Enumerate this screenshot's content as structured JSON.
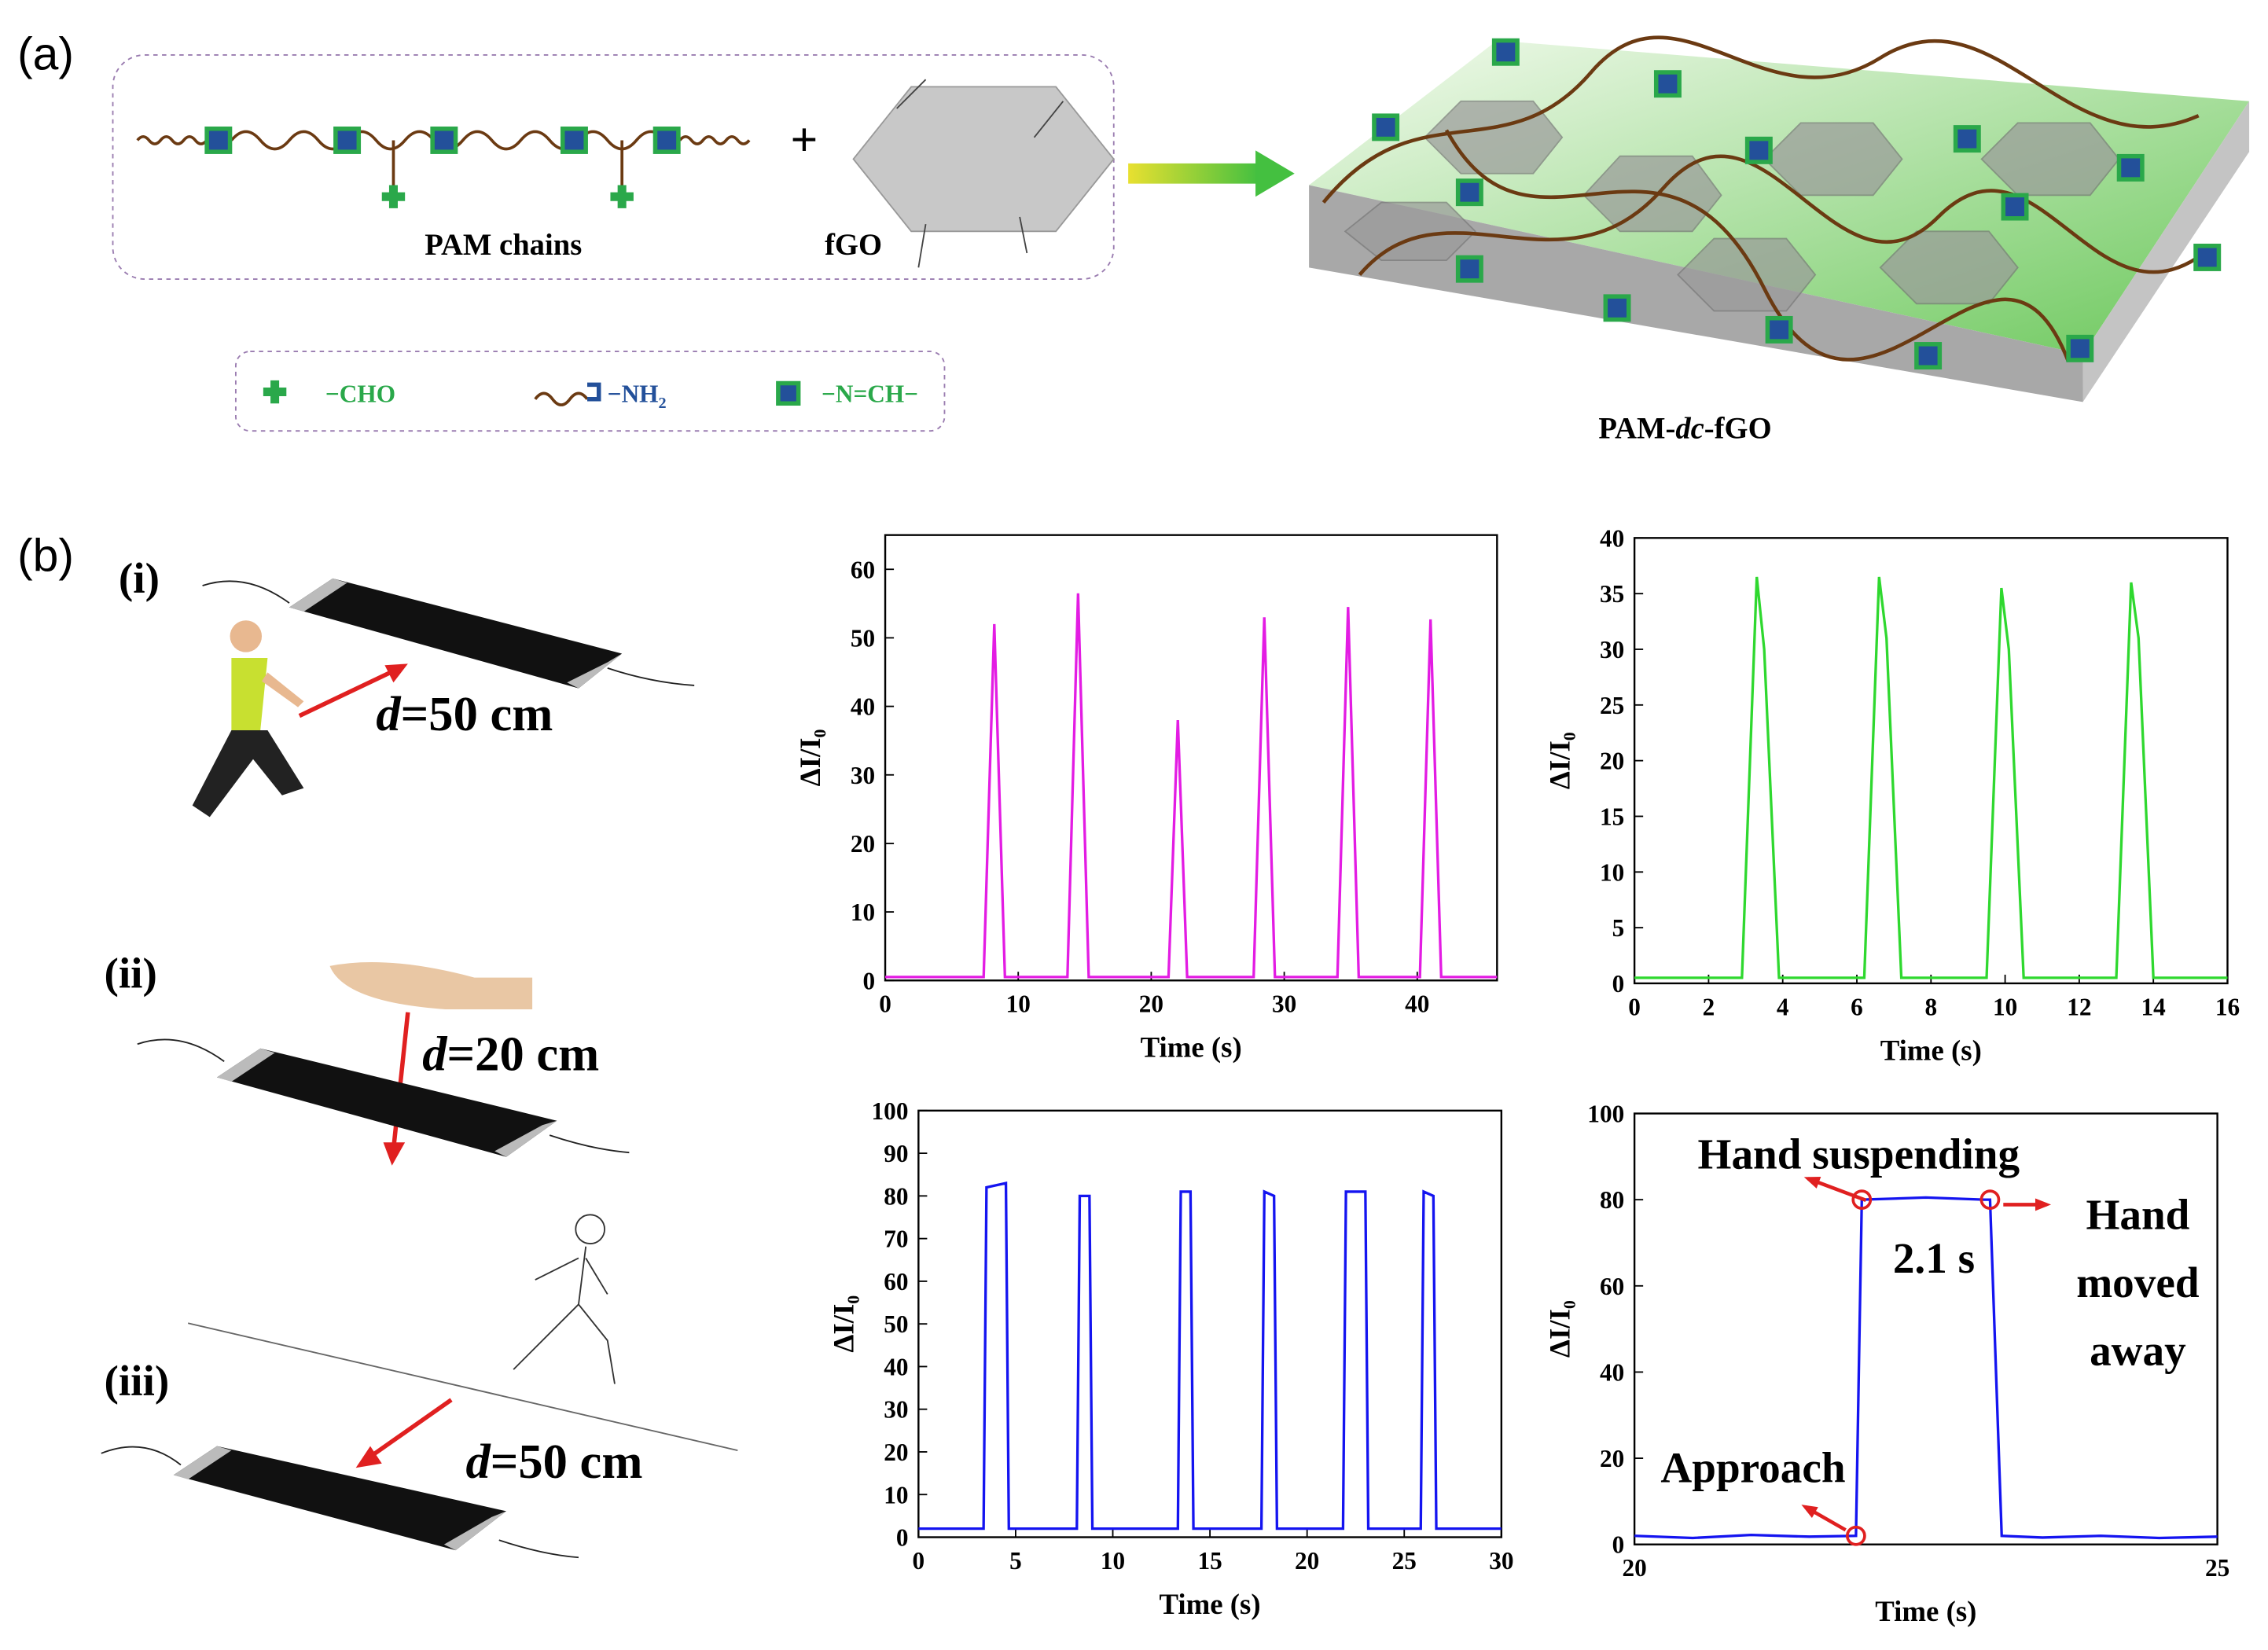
{
  "panel_a": {
    "label": "(a)",
    "chain_label": "PAM chains",
    "plus": "+",
    "sheet_label": "fGO",
    "legend": {
      "cho": "−CHO",
      "nh2": "−NH",
      "nh2_sub": "2",
      "imine": "−N=CH−"
    },
    "product_label": [
      "PAM-",
      "dc",
      "-fGO"
    ]
  },
  "panel_b": {
    "label": "(b)",
    "scenes": [
      {
        "label": "(i)",
        "distance": {
          "var": "d",
          "rest": "=50 cm"
        }
      },
      {
        "label": "(ii)",
        "distance": {
          "var": "d",
          "rest": "=20 cm"
        }
      },
      {
        "label": "(iii)",
        "distance": {
          "var": "d",
          "rest": "=50 cm"
        }
      }
    ]
  },
  "chart_data": [
    {
      "type": "line",
      "xlabel": "Time (s)",
      "ylabel": "ΔI/I₀",
      "xlim": [
        0,
        46
      ],
      "ylim": [
        0,
        65
      ],
      "xticks": [
        0,
        10,
        20,
        30,
        40
      ],
      "yticks": [
        0,
        10,
        20,
        30,
        40,
        50,
        60
      ],
      "x": [
        0,
        7.4,
        8.2,
        9.0,
        13.7,
        14.5,
        15.3,
        21.3,
        22,
        22.7,
        27.7,
        28.5,
        29.3,
        34,
        34.8,
        35.6,
        40.2,
        41,
        41.8,
        46
      ],
      "series": [
        {
          "color": "#e31ce3",
          "values": [
            0.5,
            0.5,
            52,
            0.5,
            0.5,
            56.5,
            0.5,
            0.5,
            38,
            0.5,
            0.5,
            53,
            0.5,
            0.5,
            54.5,
            0.5,
            0.5,
            52.7,
            0.5,
            0.5
          ]
        }
      ]
    },
    {
      "type": "line",
      "xlabel": "Time (s)",
      "ylabel": "ΔI/I₀",
      "xlim": [
        0,
        16
      ],
      "ylim": [
        0,
        40
      ],
      "xticks": [
        0,
        2,
        4,
        6,
        8,
        10,
        12,
        14,
        16
      ],
      "yticks": [
        0,
        5,
        10,
        15,
        20,
        25,
        30,
        35,
        40
      ],
      "x": [
        0,
        2.9,
        3.3,
        3.5,
        3.9,
        6.2,
        6.6,
        6.8,
        7.2,
        9.5,
        9.9,
        10.1,
        10.5,
        13.0,
        13.4,
        13.6,
        14.0,
        16
      ],
      "series": [
        {
          "color": "#2fd82f",
          "values": [
            0.5,
            0.5,
            36.5,
            30,
            0.5,
            0.5,
            36.5,
            31,
            0.5,
            0.5,
            35.5,
            30,
            0.5,
            0.5,
            36,
            31,
            0.5,
            0.5
          ]
        }
      ]
    },
    {
      "type": "line",
      "xlabel": "Time (s)",
      "ylabel": "ΔI/I₀",
      "xlim": [
        0,
        30
      ],
      "ylim": [
        0,
        100
      ],
      "xticks": [
        0,
        5,
        10,
        15,
        20,
        25,
        30
      ],
      "yticks": [
        0,
        10,
        20,
        30,
        40,
        50,
        60,
        70,
        80,
        90,
        100
      ],
      "x": [
        0,
        3.35,
        3.5,
        4.5,
        4.65,
        8.15,
        8.3,
        8.8,
        8.95,
        13.35,
        13.5,
        14.0,
        14.15,
        17.65,
        17.8,
        18.3,
        18.45,
        21.85,
        22.0,
        23.0,
        23.15,
        25.85,
        26.0,
        26.5,
        26.65,
        30
      ],
      "series": [
        {
          "color": "#1414f0",
          "values": [
            2,
            2,
            82,
            83,
            2,
            2,
            80,
            80,
            2,
            2,
            81,
            81,
            2,
            2,
            81,
            80,
            2,
            2,
            81,
            81,
            2,
            2,
            81,
            80,
            2,
            2
          ]
        }
      ]
    },
    {
      "type": "line",
      "xlabel": "Time (s)",
      "ylabel": "ΔI/I₀",
      "xlim": [
        20,
        25
      ],
      "ylim": [
        0,
        100
      ],
      "xticks": [
        20,
        25
      ],
      "yticks": [
        0,
        20,
        40,
        60,
        80,
        100
      ],
      "x": [
        20,
        20.5,
        21,
        21.5,
        21.9,
        21.95,
        22.5,
        23.0,
        23.05,
        23.15,
        23.5,
        24,
        24.5,
        25
      ],
      "series": [
        {
          "color": "#1414f0",
          "values": [
            2,
            1.5,
            2.2,
            1.8,
            2,
            80,
            80.5,
            80,
            80,
            2,
            1.6,
            2,
            1.5,
            1.8
          ]
        }
      ],
      "annotations": [
        "Hand suspending",
        "2.1 s",
        "Hand",
        "moved",
        "away",
        "Approach"
      ]
    }
  ]
}
